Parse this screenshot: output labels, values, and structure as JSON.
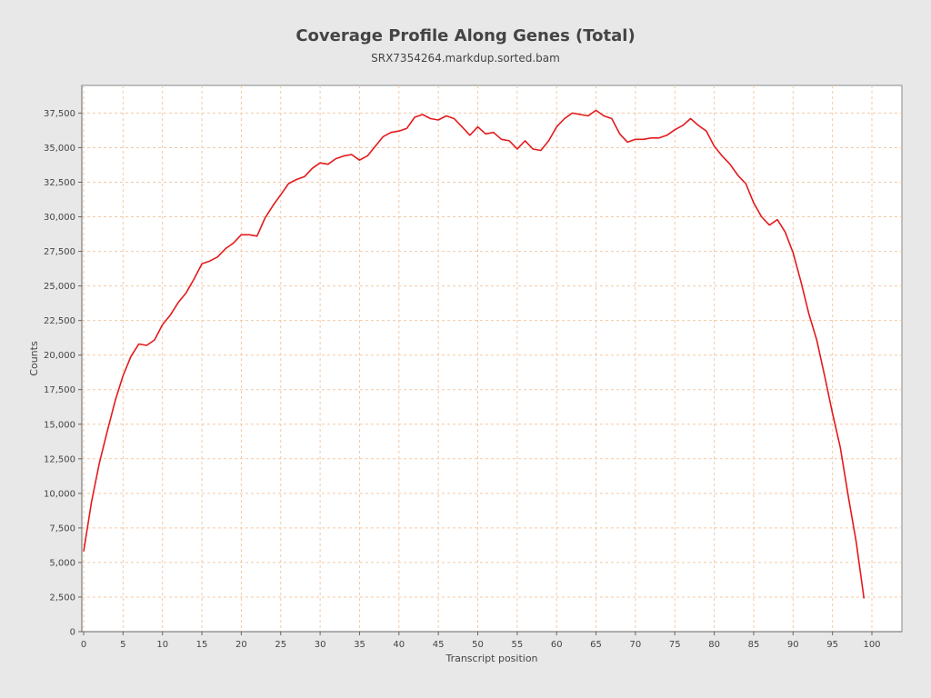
{
  "chart_data": {
    "type": "line",
    "title": "Coverage Profile Along Genes (Total)",
    "subtitle": "SRX7354264.markdup.sorted.bam",
    "xlabel": "Transcript position",
    "ylabel": "Counts",
    "xlim": [
      0,
      100
    ],
    "ylim": [
      0,
      39500
    ],
    "x_ticks": [
      0,
      5,
      10,
      15,
      20,
      25,
      30,
      35,
      40,
      45,
      50,
      55,
      60,
      65,
      70,
      75,
      80,
      85,
      90,
      95,
      100
    ],
    "y_ticks": [
      0,
      2500,
      5000,
      7500,
      10000,
      12500,
      15000,
      17500,
      20000,
      22500,
      25000,
      27500,
      30000,
      32500,
      35000,
      37500
    ],
    "y_tick_labels": [
      "0",
      "2,500",
      "5,000",
      "7,500",
      "10,000",
      "12,500",
      "15,000",
      "17,500",
      "20,000",
      "22,500",
      "25,000",
      "27,500",
      "30,000",
      "32,500",
      "35,000",
      "37,500"
    ],
    "grid": true,
    "series": [
      {
        "color": "#e31a1c",
        "x": [
          0,
          1,
          2,
          3,
          4,
          5,
          6,
          7,
          8,
          9,
          10,
          11,
          12,
          13,
          14,
          15,
          16,
          17,
          18,
          19,
          20,
          21,
          22,
          23,
          24,
          25,
          26,
          27,
          28,
          29,
          30,
          31,
          32,
          33,
          34,
          35,
          36,
          37,
          38,
          39,
          40,
          41,
          42,
          43,
          44,
          45,
          46,
          47,
          48,
          49,
          50,
          51,
          52,
          53,
          54,
          55,
          56,
          57,
          58,
          59,
          60,
          61,
          62,
          63,
          64,
          65,
          66,
          67,
          68,
          69,
          70,
          71,
          72,
          73,
          74,
          75,
          76,
          77,
          78,
          79,
          80,
          81,
          82,
          83,
          84,
          85,
          86,
          87,
          88,
          89,
          90,
          91,
          92,
          93,
          94,
          95,
          96,
          97,
          98,
          99
        ],
        "values": [
          5800,
          9400,
          12200,
          14500,
          16700,
          18500,
          19900,
          20800,
          20700,
          21100,
          22200,
          22900,
          23800,
          24500,
          25500,
          26600,
          26800,
          27100,
          27700,
          28100,
          28700,
          28700,
          28600,
          29900,
          30800,
          31600,
          32400,
          32700,
          32900,
          33500,
          33900,
          33800,
          34200,
          34400,
          34500,
          34100,
          34400,
          35100,
          35800,
          36100,
          36200,
          36400,
          37200,
          37400,
          37100,
          37000,
          37300,
          37100,
          36500,
          35900,
          36500,
          36000,
          36100,
          35600,
          35500,
          34900,
          35500,
          34900,
          34800,
          35500,
          36500,
          37100,
          37500,
          37400,
          37300,
          37700,
          37300,
          37100,
          36000,
          35400,
          35600,
          35600,
          35700,
          35700,
          35900,
          36300,
          36600,
          37100,
          36600,
          36200,
          35100,
          34400,
          33800,
          33000,
          32400,
          31000,
          30000,
          29400,
          29800,
          28900,
          27400,
          25300,
          23000,
          21100,
          18500,
          15800,
          13300,
          9800,
          6500,
          2400
        ]
      }
    ]
  }
}
